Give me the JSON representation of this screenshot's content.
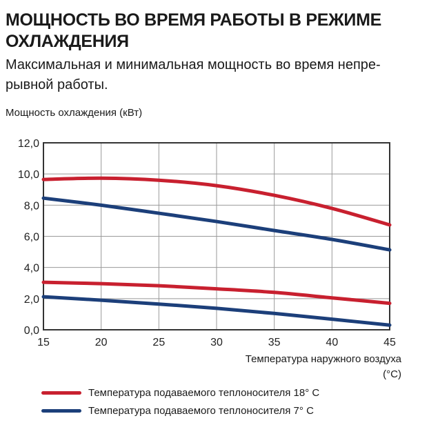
{
  "chart_data": {
    "type": "line",
    "title": "МОЩНОСТЬ ВО ВРЕМЯ РАБОТЫ В РЕЖИМЕ ОХЛАЖДЕНИЯ",
    "subtitle": "Максимальная и минимальная мощность во время непре-рывной работы.",
    "ylabel": "Мощность охлаждения (кВт)",
    "xlabel": "Температура наружного воздуха",
    "xunit": "(°C)",
    "xlim": [
      15,
      45
    ],
    "ylim": [
      0,
      12
    ],
    "grid": true,
    "x": [
      15,
      20,
      25,
      30,
      35,
      40,
      45
    ],
    "xticks": [
      "15",
      "20",
      "25",
      "30",
      "35",
      "40",
      "45"
    ],
    "yticks": [
      0,
      2,
      4,
      6,
      8,
      10,
      12
    ],
    "ytick_labels": [
      "0,0",
      "2,0",
      "4,0",
      "6,0",
      "8,0",
      "10,0",
      "12,0"
    ],
    "series": [
      {
        "name": "Температура подаваемого теплоносителя 18° C (макс.)",
        "color": "#c8202f",
        "values": [
          9.65,
          9.73,
          9.6,
          9.25,
          8.63,
          7.79,
          6.73
        ]
      },
      {
        "name": "Температура подаваемого теплоносителя 7° C (макс.)",
        "color": "#1c3f7a",
        "values": [
          8.45,
          8.0,
          7.48,
          6.95,
          6.37,
          5.8,
          5.13
        ]
      },
      {
        "name": "Температура подаваемого теплоносителя 18° C (мин.)",
        "color": "#c8202f",
        "values": [
          3.05,
          2.96,
          2.83,
          2.63,
          2.4,
          2.05,
          1.7
        ]
      },
      {
        "name": "Температура подаваемого теплоносителя 7° C (мин.)",
        "color": "#1c3f7a",
        "values": [
          2.12,
          1.9,
          1.65,
          1.38,
          1.05,
          0.68,
          0.3
        ]
      }
    ],
    "legend": [
      {
        "label": "Температура подаваемого теплоносителя 18° C",
        "color": "#c8202f"
      },
      {
        "label": "Температура подаваемого теплоносителя 7° C",
        "color": "#1c3f7a"
      }
    ],
    "legend_position": "bottom"
  }
}
